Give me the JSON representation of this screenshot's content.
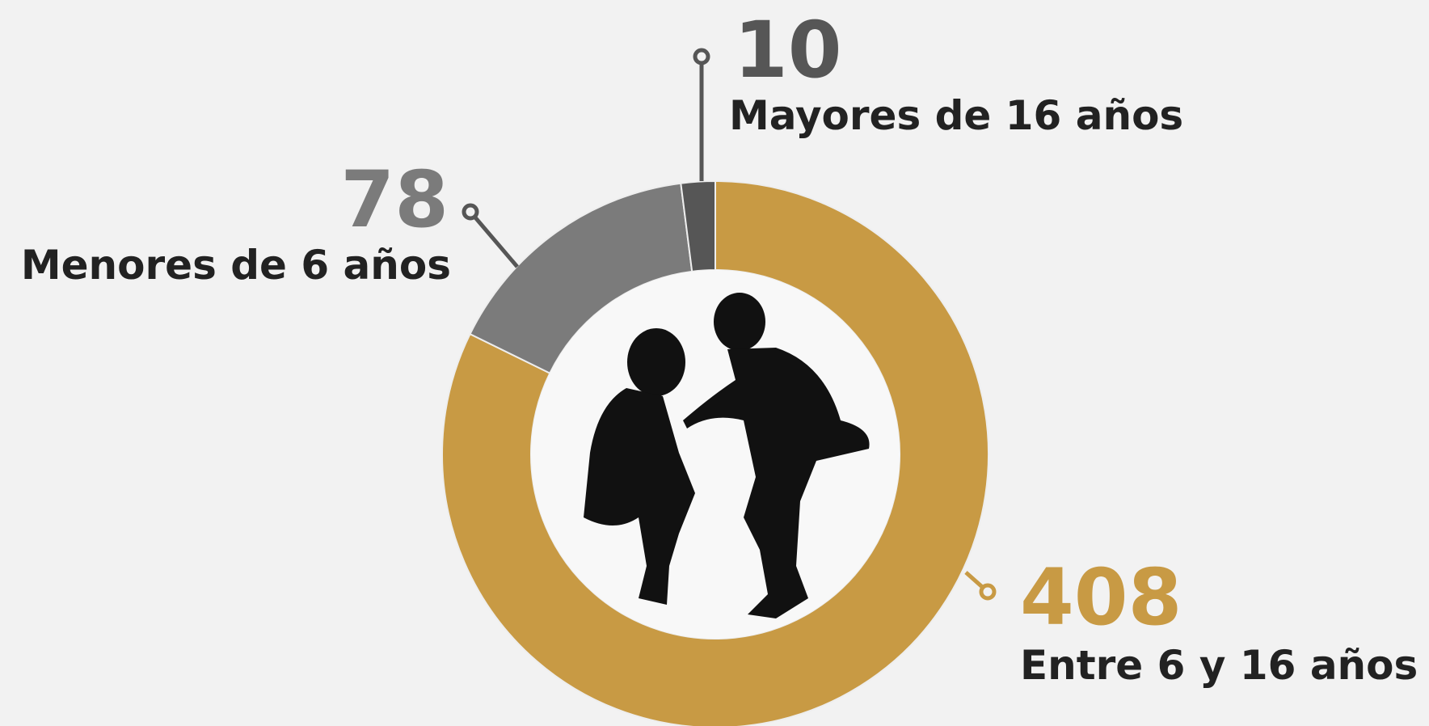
{
  "chart_data": {
    "type": "donut",
    "categories": [
      "Entre 6 y 16 años",
      "Menores de 6 años",
      "Mayores de 16 años"
    ],
    "values": [
      408,
      78,
      10
    ],
    "colors": [
      "#c89a44",
      "#7b7b7b",
      "#565656"
    ]
  }
}
